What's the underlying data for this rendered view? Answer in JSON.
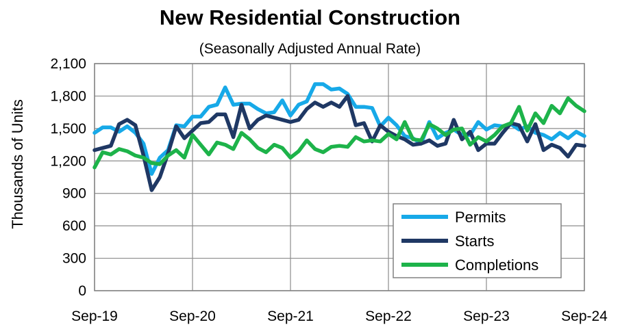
{
  "chart_data": {
    "type": "line",
    "title": "New Residential Construction",
    "subtitle": "(Seasonally Adjusted Annual Rate)",
    "ylabel": "Thousands of Units",
    "ylim": [
      0,
      2100
    ],
    "yticks": [
      0,
      300,
      600,
      900,
      1200,
      1500,
      1800,
      2100
    ],
    "ytick_labels": [
      "0",
      "300",
      "600",
      "900",
      "1,200",
      "1,500",
      "1,800",
      "2,100"
    ],
    "xtick_labels": [
      "Sep-19",
      "Sep-20",
      "Sep-21",
      "Sep-22",
      "Sep-23",
      "Sep-24"
    ],
    "x": [
      "Sep-19",
      "Oct-19",
      "Nov-19",
      "Dec-19",
      "Jan-20",
      "Feb-20",
      "Mar-20",
      "Apr-20",
      "May-20",
      "Jun-20",
      "Jul-20",
      "Aug-20",
      "Sep-20",
      "Oct-20",
      "Nov-20",
      "Dec-20",
      "Jan-21",
      "Feb-21",
      "Mar-21",
      "Apr-21",
      "May-21",
      "Jun-21",
      "Jul-21",
      "Aug-21",
      "Sep-21",
      "Oct-21",
      "Nov-21",
      "Dec-21",
      "Jan-22",
      "Feb-22",
      "Mar-22",
      "Apr-22",
      "May-22",
      "Jun-22",
      "Jul-22",
      "Aug-22",
      "Sep-22",
      "Oct-22",
      "Nov-22",
      "Dec-22",
      "Jan-23",
      "Feb-23",
      "Mar-23",
      "Apr-23",
      "May-23",
      "Jun-23",
      "Jul-23",
      "Aug-23",
      "Sep-23",
      "Oct-23",
      "Nov-23",
      "Dec-23",
      "Jan-24",
      "Feb-24",
      "Mar-24",
      "Apr-24",
      "May-24",
      "Jun-24",
      "Jul-24",
      "Aug-24",
      "Sep-24"
    ],
    "grid": true,
    "legend_position": "bottom-right",
    "series": [
      {
        "name": "Permits",
        "color": "#17a9e8",
        "values": [
          1460,
          1510,
          1510,
          1470,
          1520,
          1460,
          1360,
          1080,
          1230,
          1300,
          1530,
          1520,
          1610,
          1610,
          1700,
          1720,
          1880,
          1720,
          1730,
          1730,
          1680,
          1640,
          1650,
          1760,
          1620,
          1720,
          1750,
          1910,
          1910,
          1860,
          1870,
          1820,
          1700,
          1700,
          1690,
          1520,
          1600,
          1530,
          1430,
          1410,
          1360,
          1560,
          1410,
          1460,
          1490,
          1440,
          1440,
          1560,
          1490,
          1530,
          1520,
          1540,
          1490,
          1520,
          1460,
          1440,
          1400,
          1460,
          1410,
          1470,
          1430
        ]
      },
      {
        "name": "Starts",
        "color": "#1f3864",
        "values": [
          1300,
          1320,
          1340,
          1540,
          1580,
          1530,
          1250,
          930,
          1050,
          1270,
          1520,
          1410,
          1480,
          1550,
          1560,
          1630,
          1630,
          1420,
          1720,
          1500,
          1580,
          1620,
          1600,
          1580,
          1560,
          1580,
          1680,
          1740,
          1700,
          1740,
          1700,
          1800,
          1530,
          1550,
          1380,
          1530,
          1470,
          1430,
          1400,
          1350,
          1360,
          1390,
          1340,
          1360,
          1580,
          1400,
          1470,
          1300,
          1360,
          1360,
          1460,
          1550,
          1530,
          1380,
          1540,
          1300,
          1350,
          1320,
          1240,
          1350,
          1340
        ]
      },
      {
        "name": "Completions",
        "color": "#1db34a",
        "values": [
          1140,
          1280,
          1260,
          1310,
          1290,
          1250,
          1230,
          1180,
          1170,
          1250,
          1300,
          1230,
          1440,
          1350,
          1260,
          1370,
          1350,
          1310,
          1460,
          1400,
          1320,
          1280,
          1350,
          1320,
          1230,
          1290,
          1390,
          1310,
          1280,
          1330,
          1340,
          1330,
          1420,
          1380,
          1390,
          1380,
          1450,
          1400,
          1560,
          1400,
          1390,
          1540,
          1500,
          1440,
          1490,
          1500,
          1350,
          1420,
          1380,
          1440,
          1520,
          1550,
          1700,
          1480,
          1640,
          1550,
          1710,
          1640,
          1780,
          1710,
          1660
        ]
      }
    ]
  }
}
